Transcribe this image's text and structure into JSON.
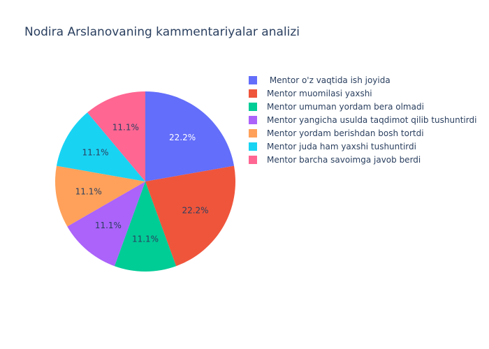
{
  "chart_data": {
    "type": "pie",
    "title": "Nodira Arslanovaning kammentariyalar analizi",
    "legend_position": "right",
    "slices": [
      {
        "label": " Mentor o'z vaqtida ish joyida",
        "value": 2,
        "percent_label": "22.2%",
        "color": "#636efa",
        "label_color": "#ffffff"
      },
      {
        "label": "Mentor muomilasi yaxshi",
        "value": 2,
        "percent_label": "22.2%",
        "color": "#ef553b",
        "label_color": "#2a3f5f"
      },
      {
        "label": "Mentor umuman yordam bera olmadi",
        "value": 1,
        "percent_label": "11.1%",
        "color": "#00cc96",
        "label_color": "#2a3f5f"
      },
      {
        "label": "Mentor yangicha usulda taqdimot qilib tushuntirdi",
        "value": 1,
        "percent_label": "11.1%",
        "color": "#ab63fa",
        "label_color": "#2a3f5f"
      },
      {
        "label": "Mentor yordam berishdan bosh tortdi",
        "value": 1,
        "percent_label": "11.1%",
        "color": "#ffa15a",
        "label_color": "#2a3f5f"
      },
      {
        "label": "Mentor juda ham yaxshi tushuntirdi",
        "value": 1,
        "percent_label": "11.1%",
        "color": "#19d3f3",
        "label_color": "#2a3f5f"
      },
      {
        "label": "Mentor barcha savoimga javob berdi",
        "value": 1,
        "percent_label": "11.1%",
        "color": "#ff6692",
        "label_color": "#2a3f5f"
      }
    ]
  }
}
